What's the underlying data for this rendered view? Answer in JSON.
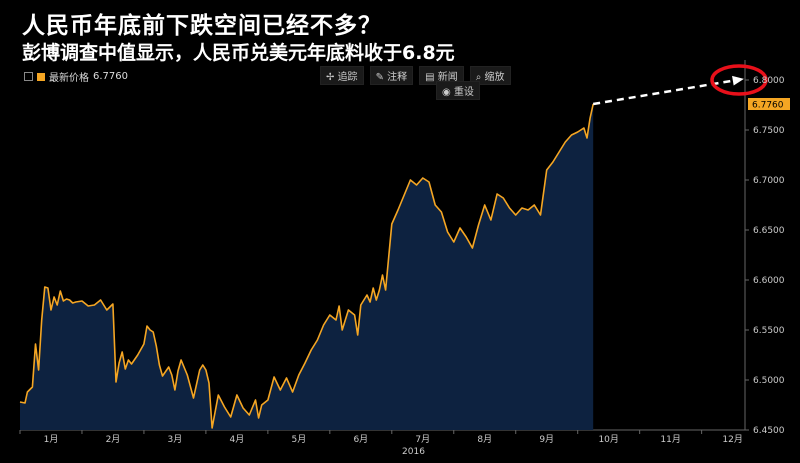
{
  "header": {
    "title": "人民币年底前下跌空间已经不多？",
    "subtitle": "彭博调查中值显示，人民币兑美元年底料收于6.8元"
  },
  "legend": {
    "label": "最新价格",
    "value": "6.7760"
  },
  "toolbar": {
    "buttons": [
      "追踪",
      "注释",
      "新闻",
      "缩放"
    ],
    "reset_label": "重设"
  },
  "colors": {
    "line": "#f5a623",
    "area": "#0d2240",
    "forecast": "#ffffff",
    "circle": "#e8101a"
  },
  "chart_data": {
    "type": "area",
    "xlabel": "",
    "year_label": "2016",
    "ylabel": "",
    "ylim": [
      6.45,
      6.82
    ],
    "yticks": [
      "6.4500",
      "6.5000",
      "6.5500",
      "6.6000",
      "6.6500",
      "6.7000",
      "6.7500",
      "6.8000"
    ],
    "xlim": [
      0,
      11.7
    ],
    "month_labels": [
      "1月",
      "2月",
      "3月",
      "4月",
      "5月",
      "6月",
      "7月",
      "8月",
      "9月",
      "10月",
      "11月",
      "12月"
    ],
    "last_value_label": "6.7760",
    "forecast_label": "6.8000",
    "forecast": {
      "from": [
        9.25,
        6.776
      ],
      "to": [
        11.7,
        6.8
      ]
    },
    "series": [
      {
        "x": [
          0,
          0.08,
          0.12,
          0.2,
          0.25,
          0.3,
          0.35,
          0.4,
          0.45,
          0.5,
          0.55,
          0.6,
          0.65,
          0.7,
          0.75,
          0.8,
          0.85,
          0.9,
          1.0,
          1.1,
          1.2,
          1.3,
          1.4,
          1.5,
          1.55,
          1.6,
          1.65,
          1.7,
          1.75,
          1.8,
          1.9,
          2.0,
          2.05,
          2.1,
          2.15,
          2.2,
          2.25,
          2.3,
          2.4,
          2.45,
          2.5,
          2.55,
          2.6,
          2.7,
          2.8,
          2.9,
          2.95,
          3.0,
          3.05,
          3.1,
          3.2,
          3.3,
          3.4,
          3.5,
          3.6,
          3.7,
          3.8,
          3.85,
          3.9,
          4.0,
          4.1,
          4.2,
          4.3,
          4.4,
          4.5,
          4.6,
          4.7,
          4.8,
          4.9,
          5.0,
          5.1,
          5.15,
          5.2,
          5.3,
          5.4,
          5.45,
          5.5,
          5.6,
          5.65,
          5.7,
          5.75,
          5.8,
          5.85,
          5.9,
          6.0,
          6.1,
          6.2,
          6.3,
          6.4,
          6.5,
          6.6,
          6.7,
          6.8,
          6.9,
          7.0,
          7.1,
          7.2,
          7.3,
          7.4,
          7.5,
          7.6,
          7.7,
          7.8,
          7.9,
          8.0,
          8.1,
          8.2,
          8.3,
          8.4,
          8.5,
          8.6,
          8.7,
          8.8,
          8.9,
          9.0,
          9.1,
          9.15,
          9.2,
          9.25
        ],
        "values": [
          6.478,
          6.477,
          6.488,
          6.493,
          6.536,
          6.51,
          6.56,
          6.593,
          6.592,
          6.57,
          6.583,
          6.575,
          6.589,
          6.579,
          6.581,
          6.58,
          6.577,
          6.578,
          6.579,
          6.574,
          6.575,
          6.58,
          6.57,
          6.576,
          6.498,
          6.517,
          6.528,
          6.511,
          6.52,
          6.516,
          6.525,
          6.536,
          6.554,
          6.55,
          6.548,
          6.534,
          6.515,
          6.504,
          6.513,
          6.505,
          6.49,
          6.509,
          6.52,
          6.505,
          6.482,
          6.51,
          6.515,
          6.51,
          6.497,
          6.452,
          6.485,
          6.473,
          6.463,
          6.485,
          6.472,
          6.465,
          6.48,
          6.462,
          6.475,
          6.48,
          6.503,
          6.49,
          6.502,
          6.488,
          6.505,
          6.517,
          6.53,
          6.54,
          6.555,
          6.565,
          6.56,
          6.574,
          6.55,
          6.57,
          6.565,
          6.545,
          6.575,
          6.585,
          6.578,
          6.592,
          6.58,
          6.59,
          6.605,
          6.59,
          6.656,
          6.67,
          6.685,
          6.7,
          6.695,
          6.702,
          6.698,
          6.675,
          6.668,
          6.648,
          6.638,
          6.652,
          6.643,
          6.632,
          6.655,
          6.675,
          6.66,
          6.686,
          6.682,
          6.672,
          6.665,
          6.672,
          6.67,
          6.675,
          6.665,
          6.71,
          6.718,
          6.728,
          6.738,
          6.745,
          6.748,
          6.752,
          6.742,
          6.762,
          6.776
        ]
      }
    ]
  }
}
